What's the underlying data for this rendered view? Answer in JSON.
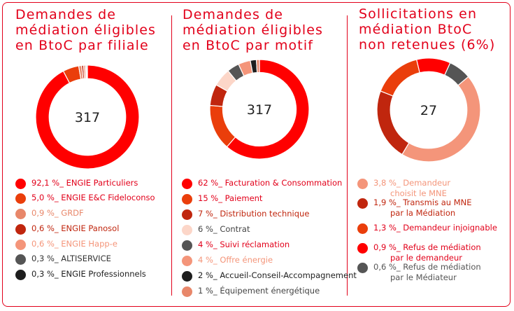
{
  "chart_data": [
    {
      "type": "pie",
      "title": "Demandes de\nmédiation éligibles\nen BtoC par filiale",
      "center_label": "317",
      "slices": [
        {
          "label": "ENGIE Particuliers",
          "value_text": "92,1 %_",
          "value": 92.1,
          "color": "#ff0000",
          "text_color": "#e2001a"
        },
        {
          "label": "ENGIE E&C Fideloconso",
          "value_text": "5,0 %_",
          "value": 5.0,
          "color": "#ea3e0b",
          "text_color": "#e2001a"
        },
        {
          "label": "GRDF",
          "value_text": "0,9 %_",
          "value": 0.9,
          "color": "#e8876a",
          "text_color": "#e8876a"
        },
        {
          "label": "ENGIE Panosol",
          "value_text": "0,6 %_",
          "value": 0.6,
          "color": "#c0260e",
          "text_color": "#c0260e"
        },
        {
          "label": "ENGIE Happ-e",
          "value_text": "0,6 %_",
          "value": 0.6,
          "color": "#f4957a",
          "text_color": "#f4957a"
        },
        {
          "label": "ALTISERVICE",
          "value_text": "0,3 %_",
          "value": 0.3,
          "color": "#555555",
          "text_color": "#333333"
        },
        {
          "label": "ENGIE Professionnels",
          "value_text": "0,3 %_",
          "value": 0.3,
          "color": "#1e1e1e",
          "text_color": "#1e1e1e"
        }
      ]
    },
    {
      "type": "pie",
      "title": "Demandes de\nmédiation éligibles\nen BtoC par motif",
      "center_label": "317",
      "slices": [
        {
          "label": "Facturation & Consommation",
          "value_text": "62 %_",
          "value": 62,
          "color": "#ff0000",
          "text_color": "#e2001a"
        },
        {
          "label": "Paiement",
          "value_text": "15 %_",
          "value": 15,
          "color": "#ea3e0b",
          "text_color": "#e2001a"
        },
        {
          "label": "Distribution technique",
          "value_text": "7 %_",
          "value": 7,
          "color": "#c0260e",
          "text_color": "#c0260e"
        },
        {
          "label": "Contrat",
          "value_text": "6 %_",
          "value": 6,
          "color": "#fcd6c8",
          "text_color": "#444444"
        },
        {
          "label": "Suivi réclamation",
          "value_text": "4 %_",
          "value": 4,
          "color": "#555555",
          "text_color": "#e2001a"
        },
        {
          "label": "Offre énergie",
          "value_text": "4 %_",
          "value": 4,
          "color": "#f4957a",
          "text_color": "#f4957a"
        },
        {
          "label": "Accueil-Conseil-Accompagnement",
          "value_text": "2 %_",
          "value": 2,
          "color": "#1e1e1e",
          "text_color": "#1e1e1e"
        },
        {
          "label": "Équipement énergétique",
          "value_text": "1 %_",
          "value": 1,
          "color": "#e8876a",
          "text_color": "#444444"
        }
      ]
    },
    {
      "type": "pie",
      "title": "Sollicitations en\nmédiation BtoC\nnon retenues (6%)",
      "center_label": "27",
      "slices": [
        {
          "label": "Demandeur\nchoisit le MNE",
          "value_text": "3,8 %_",
          "value": 3.8,
          "color": "#f4957a",
          "text_color": "#f4957a"
        },
        {
          "label": "Transmis au MNE\npar la Médiation",
          "value_text": "1,9 %_",
          "value": 1.9,
          "color": "#c0260e",
          "text_color": "#c0260e"
        },
        {
          "label": "Demandeur injoignable",
          "value_text": "1,3 %_",
          "value": 1.3,
          "color": "#ea3e0b",
          "text_color": "#e2001a"
        },
        {
          "label": "Refus de médiation\npar le demandeur",
          "value_text": "0,9 %_",
          "value": 0.9,
          "color": "#ff0000",
          "text_color": "#e2001a"
        },
        {
          "label": "Refus de médiation\npar le Médiateur",
          "value_text": "0,6 %_",
          "value": 0.6,
          "color": "#555555",
          "text_color": "#555555"
        }
      ]
    }
  ]
}
